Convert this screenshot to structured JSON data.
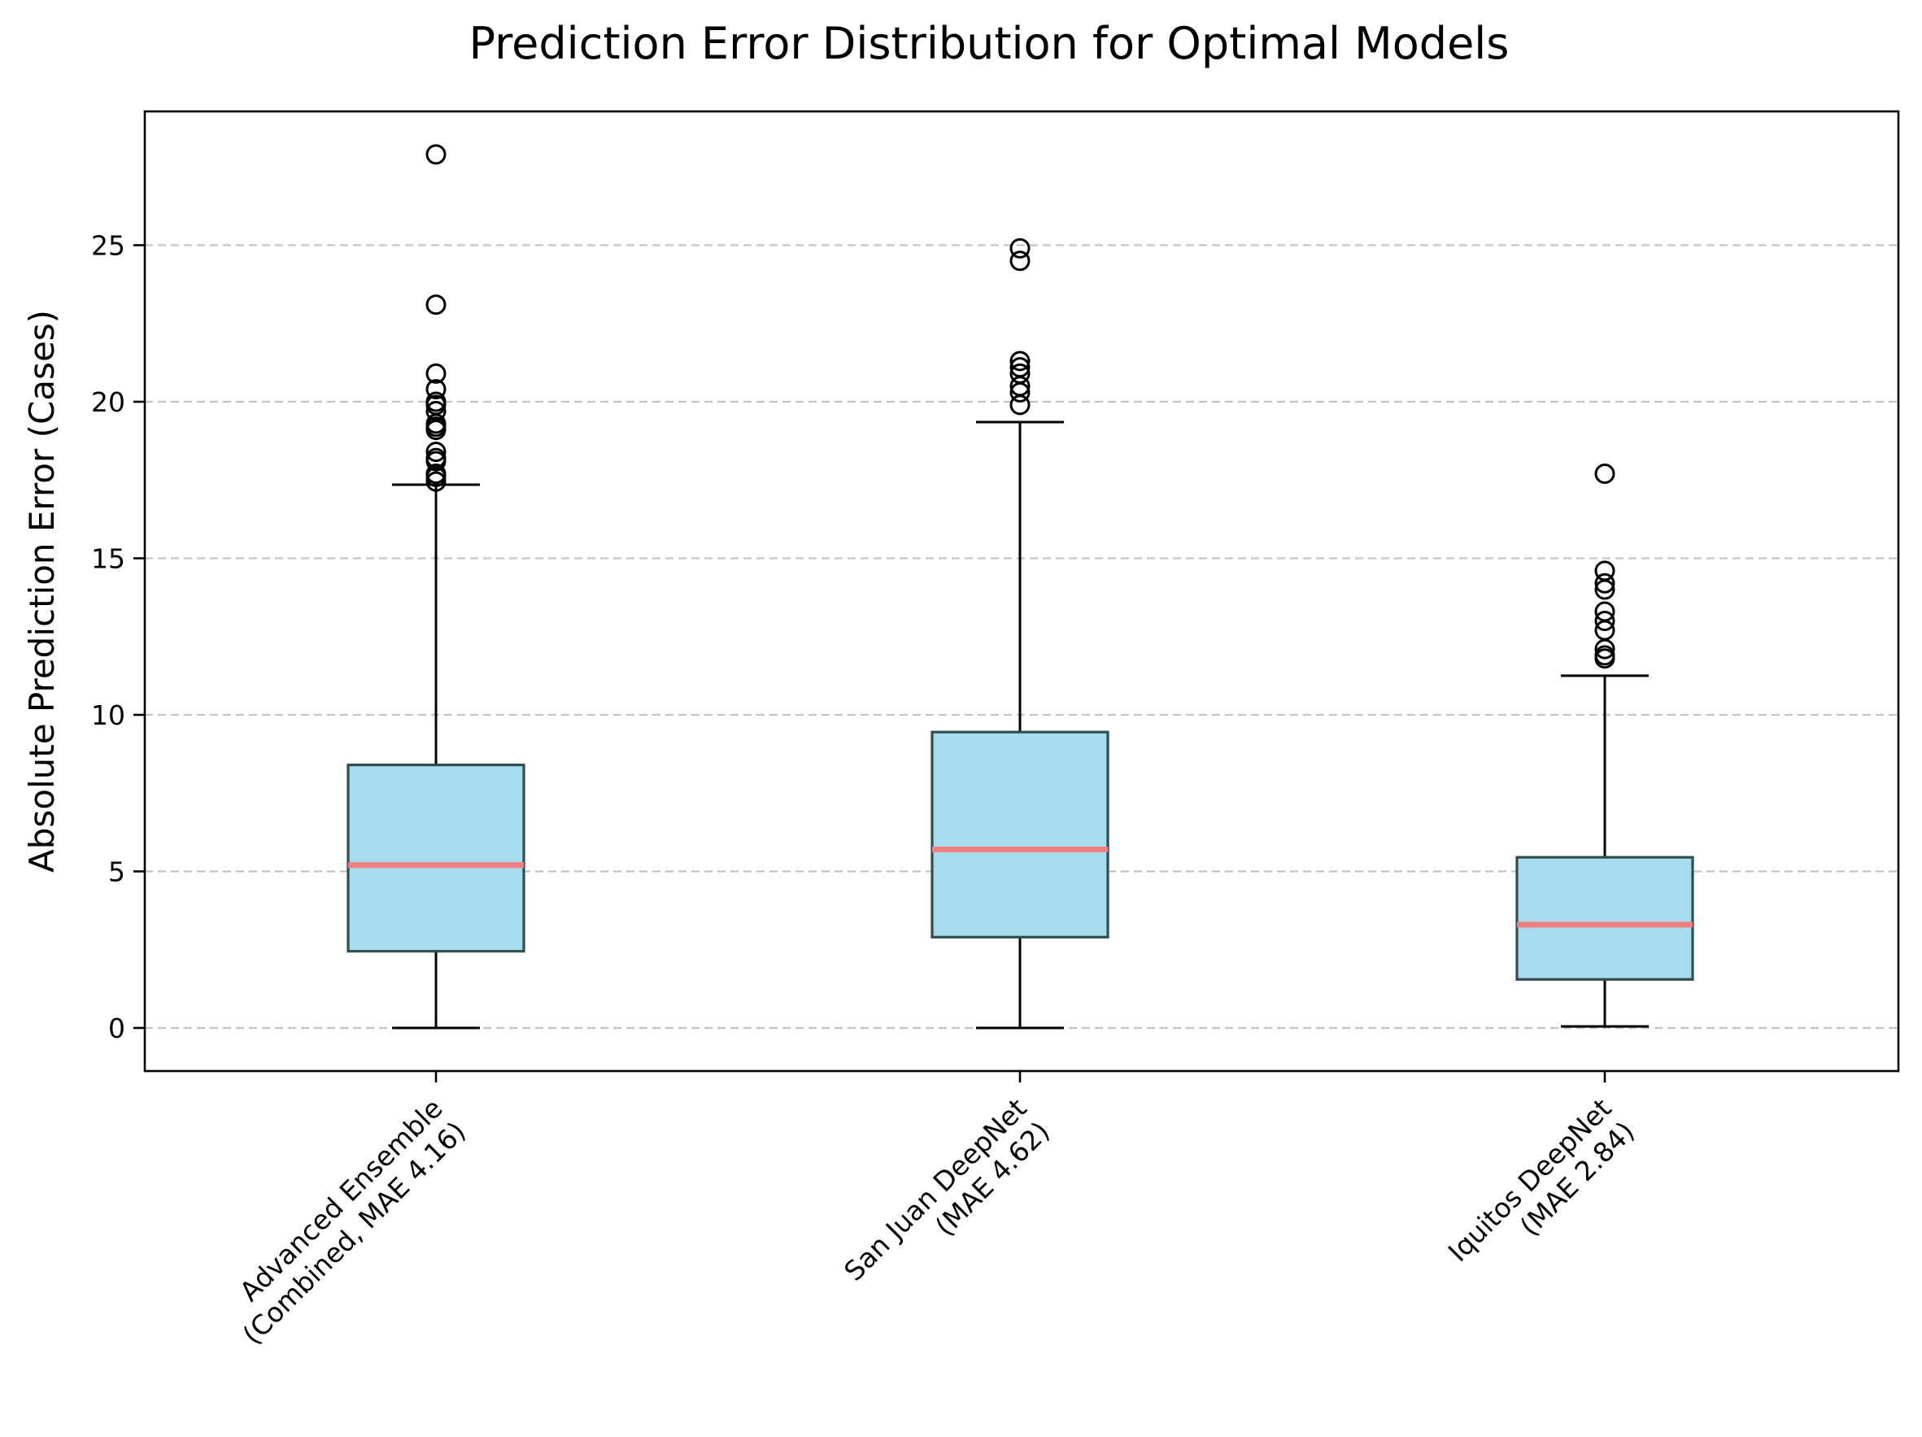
{
  "chart_data": {
    "type": "box",
    "title": "Prediction Error Distribution for Optimal Models",
    "xlabel": "",
    "ylabel": "Absolute Prediction Error (Cases)",
    "ylim": [
      -1.4,
      29.3
    ],
    "yticks": [
      0,
      5,
      10,
      15,
      20,
      25
    ],
    "grid": "y-dashed",
    "legend": "none",
    "categories": [
      "Advanced Ensemble\n(Combined, MAE 4.16)",
      "San Juan DeepNet\n(MAE 4.62)",
      "Iquitos DeepNet\n(MAE 2.84)"
    ],
    "boxes": [
      {
        "label_lines": [
          "Advanced Ensemble",
          "(Combined, MAE 4.16)"
        ],
        "whisker_low": 0.0,
        "q1": 2.45,
        "median": 5.2,
        "q3": 8.4,
        "whisker_high": 17.35,
        "fliers": [
          17.45,
          17.6,
          17.7,
          18.1,
          18.2,
          18.4,
          19.1,
          19.2,
          19.3,
          19.7,
          19.9,
          20.0,
          20.4,
          20.9,
          23.1,
          27.9
        ]
      },
      {
        "label_lines": [
          "San Juan DeepNet",
          "(MAE 4.62)"
        ],
        "whisker_low": 0.0,
        "q1": 2.9,
        "median": 5.7,
        "q3": 9.45,
        "whisker_high": 19.35,
        "fliers": [
          19.9,
          20.3,
          20.5,
          20.9,
          21.1,
          21.3,
          24.5,
          24.9
        ]
      },
      {
        "label_lines": [
          "Iquitos DeepNet",
          "(MAE 2.84)"
        ],
        "whisker_low": 0.05,
        "q1": 1.55,
        "median": 3.3,
        "q3": 5.45,
        "whisker_high": 11.25,
        "fliers": [
          11.8,
          11.9,
          12.1,
          12.7,
          13.0,
          13.3,
          14.0,
          14.2,
          14.6,
          17.7
        ]
      }
    ],
    "colors": {
      "box_fill": "#a8dbed",
      "box_edge": "#2f4f4f",
      "median": "#f08080",
      "whisker": "#000000",
      "grid": "#b0b0b0"
    }
  }
}
